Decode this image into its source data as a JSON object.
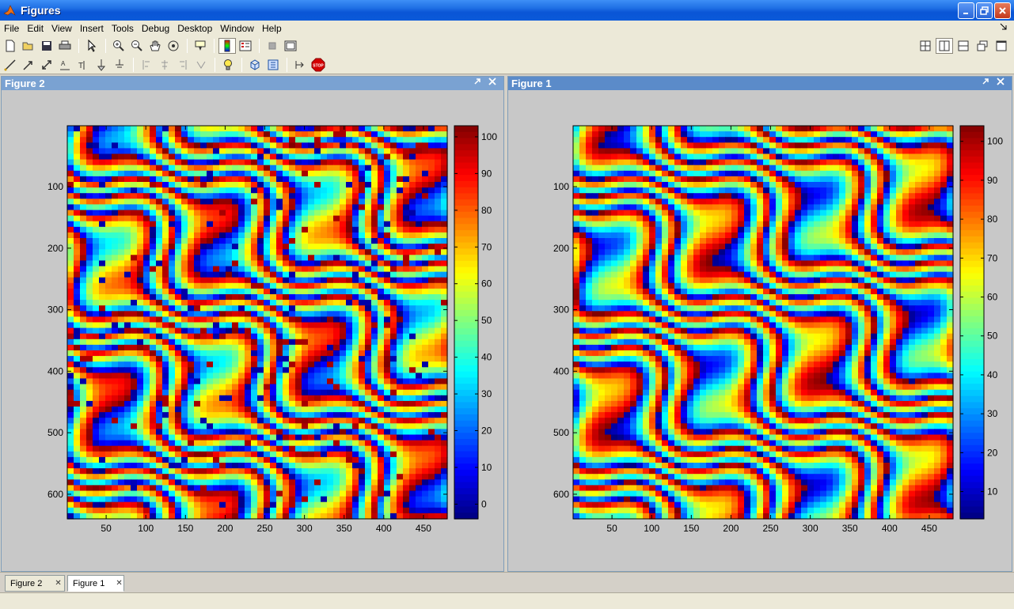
{
  "window": {
    "title": "Figures"
  },
  "menu": [
    "File",
    "Edit",
    "View",
    "Insert",
    "Tools",
    "Debug",
    "Desktop",
    "Window",
    "Help"
  ],
  "panels": {
    "left": {
      "title": "Figure 2"
    },
    "right": {
      "title": "Figure 1"
    }
  },
  "tabs": [
    {
      "label": "Figure 2"
    },
    {
      "label": "Figure 1"
    }
  ],
  "colors": {
    "title_gradient": "#0b5ad9",
    "panel_active": "#5b8bc9",
    "panel_inactive": "#7aa2d2",
    "figure_bg": "#c8c8c8"
  },
  "chart_data": [
    {
      "type": "heatmap",
      "colormap": "jet",
      "xlim": [
        1,
        480
      ],
      "ylim": [
        1,
        640
      ],
      "y_reversed": true,
      "xticks": [
        50,
        100,
        150,
        200,
        250,
        300,
        350,
        400,
        450
      ],
      "yticks": [
        100,
        200,
        300,
        400,
        500,
        600
      ],
      "colorbar": {
        "ticks": [
          0,
          10,
          20,
          30,
          40,
          50,
          60,
          70,
          80,
          90,
          100
        ],
        "range": [
          -4,
          103
        ]
      },
      "noisy": true
    },
    {
      "type": "heatmap",
      "colormap": "jet",
      "xlim": [
        1,
        480
      ],
      "ylim": [
        1,
        640
      ],
      "y_reversed": true,
      "xticks": [
        50,
        100,
        150,
        200,
        250,
        300,
        350,
        400,
        450
      ],
      "yticks": [
        100,
        200,
        300,
        400,
        500,
        600
      ],
      "colorbar": {
        "ticks": [
          10,
          20,
          30,
          40,
          50,
          60,
          70,
          80,
          90,
          100
        ],
        "range": [
          3,
          104
        ]
      },
      "noisy": false
    }
  ]
}
